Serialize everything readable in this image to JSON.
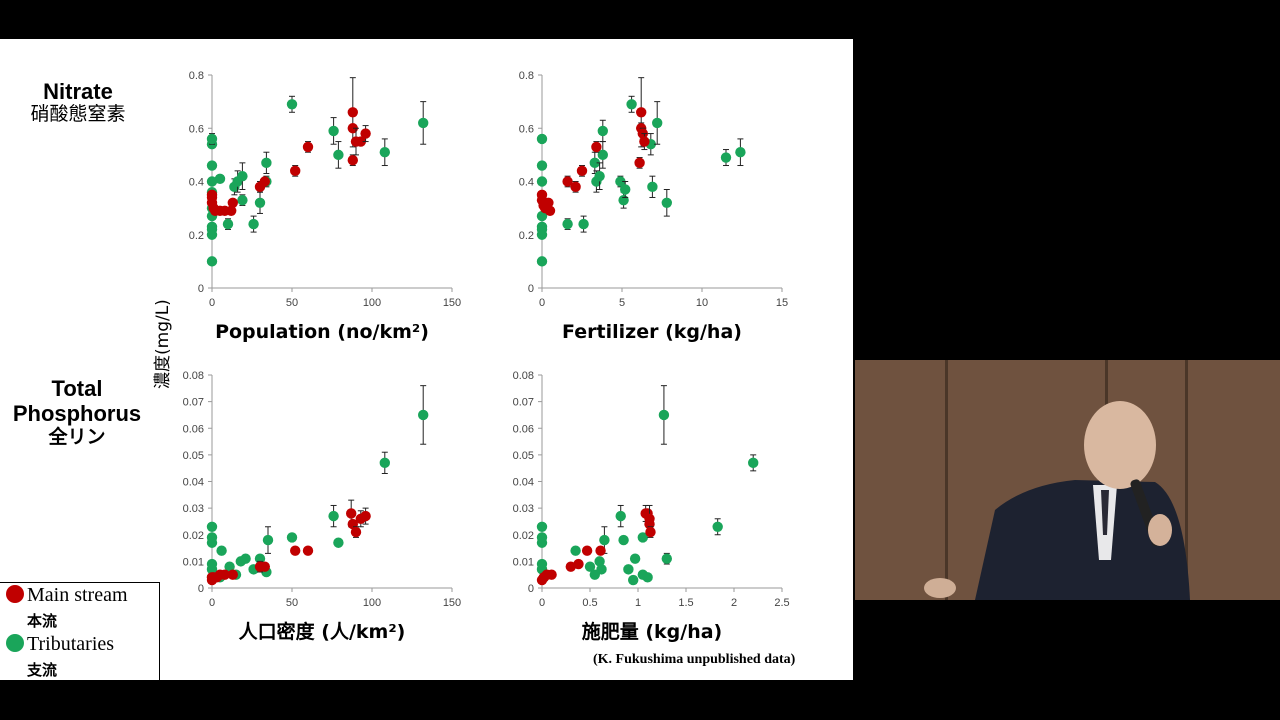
{
  "slide": {
    "row_labels": {
      "nitrate": [
        "Nitrate",
        "硝酸態窒素"
      ],
      "phosphorus": [
        "Total",
        "Phosphorus",
        "全リン"
      ]
    },
    "y_axis_title": "濃度(mg/L)",
    "legend": {
      "main": {
        "label": "Main stream",
        "sub": "本流",
        "color": "#c00000"
      },
      "trib": {
        "label": "Tributaries",
        "sub": "支流",
        "color": "#1aa55a"
      }
    },
    "credit": "(K. Fukushima unpublished data)"
  },
  "chart_data": [
    {
      "type": "scatter",
      "xlabel": "Population (no/km²)",
      "ylabel": "濃度(mg/L)",
      "xlim": [
        0,
        150
      ],
      "ylim": [
        0,
        0.8
      ],
      "xticks": [
        "0",
        "50",
        "100",
        "150"
      ],
      "yticks": [
        "0",
        "0.2",
        "0.4",
        "0.6",
        "0.8"
      ],
      "series": [
        {
          "name": "Main stream",
          "color": "#c00000",
          "points": [
            [
              0,
              0.35
            ],
            [
              0,
              0.34
            ],
            [
              0,
              0.32
            ],
            [
              1,
              0.3
            ],
            [
              2,
              0.29
            ],
            [
              5,
              0.29
            ],
            [
              8,
              0.29
            ],
            [
              12,
              0.29
            ],
            [
              13,
              0.32
            ],
            [
              30,
              0.38
            ],
            [
              33,
              0.4
            ],
            [
              52,
              0.44
            ],
            [
              60,
              0.53
            ],
            [
              88,
              0.66
            ],
            [
              88,
              0.6
            ],
            [
              88,
              0.48
            ],
            [
              90,
              0.55
            ],
            [
              93,
              0.55
            ],
            [
              96,
              0.58
            ]
          ],
          "err": [
            0,
            0,
            0,
            0,
            0,
            0,
            0,
            0,
            0,
            0.02,
            0,
            0.02,
            0.02,
            0.13,
            0,
            0.02,
            0.05,
            0,
            0.03
          ]
        },
        {
          "name": "Tributaries",
          "color": "#1aa55a",
          "points": [
            [
              0,
              0.1
            ],
            [
              0,
              0.2
            ],
            [
              0,
              0.22
            ],
            [
              0,
              0.23
            ],
            [
              0,
              0.27
            ],
            [
              0,
              0.3
            ],
            [
              0,
              0.36
            ],
            [
              0,
              0.4
            ],
            [
              0,
              0.46
            ],
            [
              0,
              0.54
            ],
            [
              0,
              0.56
            ],
            [
              5,
              0.41
            ],
            [
              10,
              0.24
            ],
            [
              14,
              0.38
            ],
            [
              16,
              0.4
            ],
            [
              19,
              0.42
            ],
            [
              19,
              0.33
            ],
            [
              26,
              0.24
            ],
            [
              30,
              0.32
            ],
            [
              34,
              0.4
            ],
            [
              34,
              0.47
            ],
            [
              50,
              0.69
            ],
            [
              76,
              0.59
            ],
            [
              79,
              0.5
            ],
            [
              108,
              0.51
            ],
            [
              132,
              0.62
            ]
          ],
          "err": [
            0,
            0,
            0,
            0,
            0,
            0,
            0,
            0,
            0,
            0,
            0.02,
            0,
            0.02,
            0.03,
            0.04,
            0.05,
            0.02,
            0.03,
            0.04,
            0.02,
            0.04,
            0.03,
            0.05,
            0.05,
            0.05,
            0.08
          ]
        }
      ]
    },
    {
      "type": "scatter",
      "xlabel": "Fertilizer (kg/ha)",
      "ylabel": "",
      "xlim": [
        0,
        15
      ],
      "ylim": [
        0,
        0.8
      ],
      "xticks": [
        "0",
        "5",
        "10",
        "15"
      ],
      "yticks": [
        "0",
        "0.2",
        "0.4",
        "0.6",
        "0.8"
      ],
      "series": [
        {
          "name": "Main stream",
          "color": "#c00000",
          "points": [
            [
              0,
              0.35
            ],
            [
              0,
              0.33
            ],
            [
              0.1,
              0.31
            ],
            [
              0.2,
              0.3
            ],
            [
              0.4,
              0.32
            ],
            [
              0.5,
              0.29
            ],
            [
              1.6,
              0.4
            ],
            [
              2.1,
              0.38
            ],
            [
              2.5,
              0.44
            ],
            [
              3.4,
              0.53
            ],
            [
              6.1,
              0.47
            ],
            [
              6.2,
              0.66
            ],
            [
              6.2,
              0.6
            ],
            [
              6.3,
              0.58
            ],
            [
              6.4,
              0.55
            ]
          ],
          "err": [
            0,
            0,
            0,
            0,
            0,
            0,
            0.02,
            0.02,
            0.02,
            0.02,
            0.02,
            0.13,
            0.02,
            0.02,
            0.03
          ]
        },
        {
          "name": "Tributaries",
          "color": "#1aa55a",
          "points": [
            [
              0,
              0.1
            ],
            [
              0,
              0.2
            ],
            [
              0,
              0.22
            ],
            [
              0,
              0.23
            ],
            [
              0,
              0.27
            ],
            [
              0,
              0.4
            ],
            [
              0,
              0.46
            ],
            [
              0,
              0.56
            ],
            [
              1.6,
              0.24
            ],
            [
              2.6,
              0.24
            ],
            [
              3.3,
              0.47
            ],
            [
              3.4,
              0.4
            ],
            [
              3.6,
              0.42
            ],
            [
              3.8,
              0.59
            ],
            [
              3.8,
              0.5
            ],
            [
              4.9,
              0.4
            ],
            [
              5.1,
              0.33
            ],
            [
              5.2,
              0.37
            ],
            [
              5.6,
              0.69
            ],
            [
              6.8,
              0.54
            ],
            [
              6.9,
              0.38
            ],
            [
              7.2,
              0.62
            ],
            [
              7.8,
              0.32
            ],
            [
              11.5,
              0.49
            ],
            [
              12.4,
              0.51
            ]
          ],
          "err": [
            0,
            0,
            0,
            0,
            0,
            0,
            0,
            0,
            0.02,
            0.03,
            0.04,
            0.04,
            0.05,
            0.04,
            0.05,
            0.02,
            0.03,
            0.03,
            0.03,
            0.04,
            0.04,
            0.08,
            0.05,
            0.03,
            0.05
          ]
        }
      ]
    },
    {
      "type": "scatter",
      "xlabel": "人口密度 (人/km²)",
      "ylabel": "濃度(mg/L)",
      "xlim": [
        0,
        150
      ],
      "ylim": [
        0,
        0.08
      ],
      "xticks": [
        "0",
        "50",
        "100",
        "150"
      ],
      "yticks": [
        "0",
        "0.01",
        "0.02",
        "0.03",
        "0.04",
        "0.05",
        "0.06",
        "0.07",
        "0.08"
      ],
      "series": [
        {
          "name": "Main stream",
          "color": "#c00000",
          "points": [
            [
              0,
              0.003
            ],
            [
              0,
              0.004
            ],
            [
              1,
              0.004
            ],
            [
              3,
              0.004
            ],
            [
              5,
              0.005
            ],
            [
              8,
              0.005
            ],
            [
              13,
              0.005
            ],
            [
              30,
              0.008
            ],
            [
              33,
              0.008
            ],
            [
              52,
              0.014
            ],
            [
              60,
              0.014
            ],
            [
              87,
              0.028
            ],
            [
              88,
              0.024
            ],
            [
              90,
              0.021
            ],
            [
              93,
              0.026
            ],
            [
              96,
              0.027
            ]
          ],
          "err": [
            0,
            0,
            0,
            0,
            0,
            0,
            0,
            0.002,
            0,
            0.001,
            0.001,
            0.005,
            0,
            0.002,
            0.003,
            0.003
          ]
        },
        {
          "name": "Tributaries",
          "color": "#1aa55a",
          "points": [
            [
              0,
              0.004
            ],
            [
              0,
              0.007
            ],
            [
              0,
              0.009
            ],
            [
              0,
              0.017
            ],
            [
              0,
              0.019
            ],
            [
              0,
              0.023
            ],
            [
              5,
              0.004
            ],
            [
              6,
              0.014
            ],
            [
              11,
              0.008
            ],
            [
              15,
              0.005
            ],
            [
              18,
              0.01
            ],
            [
              21,
              0.011
            ],
            [
              26,
              0.007
            ],
            [
              30,
              0.011
            ],
            [
              34,
              0.006
            ],
            [
              35,
              0.018
            ],
            [
              50,
              0.019
            ],
            [
              76,
              0.027
            ],
            [
              79,
              0.017
            ],
            [
              108,
              0.047
            ],
            [
              132,
              0.065
            ]
          ],
          "err": [
            0,
            0,
            0,
            0,
            0,
            0,
            0,
            0,
            0,
            0,
            0,
            0,
            0,
            0,
            0,
            0.005,
            0,
            0.004,
            0,
            0.004,
            0.011
          ]
        }
      ]
    },
    {
      "type": "scatter",
      "xlabel": "施肥量 (kg/ha)",
      "ylabel": "",
      "xlim": [
        0,
        2.5
      ],
      "ylim": [
        0,
        0.08
      ],
      "xticks": [
        "0",
        "0.5",
        "1",
        "1.5",
        "2",
        "2.5"
      ],
      "yticks": [
        "0",
        "0.01",
        "0.02",
        "0.03",
        "0.04",
        "0.05",
        "0.06",
        "0.07",
        "0.08"
      ],
      "series": [
        {
          "name": "Main stream",
          "color": "#c00000",
          "points": [
            [
              0,
              0.003
            ],
            [
              0.02,
              0.004
            ],
            [
              0.05,
              0.005
            ],
            [
              0.1,
              0.005
            ],
            [
              0.3,
              0.008
            ],
            [
              0.38,
              0.009
            ],
            [
              0.47,
              0.014
            ],
            [
              0.61,
              0.014
            ],
            [
              1.08,
              0.028
            ],
            [
              1.1,
              0.028
            ],
            [
              1.12,
              0.026
            ],
            [
              1.12,
              0.024
            ],
            [
              1.13,
              0.021
            ]
          ],
          "err": [
            0,
            0,
            0,
            0,
            0,
            0.001,
            0.001,
            0.001,
            0.003,
            0,
            0.005,
            0,
            0.002
          ]
        },
        {
          "name": "Tributaries",
          "color": "#1aa55a",
          "points": [
            [
              0,
              0.007
            ],
            [
              0,
              0.009
            ],
            [
              0,
              0.017
            ],
            [
              0,
              0.019
            ],
            [
              0,
              0.023
            ],
            [
              0.02,
              0.004
            ],
            [
              0.35,
              0.014
            ],
            [
              0.5,
              0.008
            ],
            [
              0.55,
              0.005
            ],
            [
              0.6,
              0.01
            ],
            [
              0.62,
              0.007
            ],
            [
              0.65,
              0.018
            ],
            [
              0.82,
              0.027
            ],
            [
              0.85,
              0.018
            ],
            [
              0.9,
              0.007
            ],
            [
              0.95,
              0.003
            ],
            [
              0.97,
              0.011
            ],
            [
              1.05,
              0.019
            ],
            [
              1.05,
              0.005
            ],
            [
              1.1,
              0.004
            ],
            [
              1.27,
              0.065
            ],
            [
              1.3,
              0.011
            ],
            [
              1.83,
              0.023
            ],
            [
              2.2,
              0.047
            ]
          ],
          "err": [
            0,
            0,
            0,
            0,
            0,
            0,
            0,
            0,
            0,
            0,
            0,
            0.005,
            0.004,
            0,
            0,
            0,
            0.001,
            0,
            0,
            0,
            0.011,
            0.002,
            0.003,
            0.003
          ]
        }
      ]
    }
  ]
}
